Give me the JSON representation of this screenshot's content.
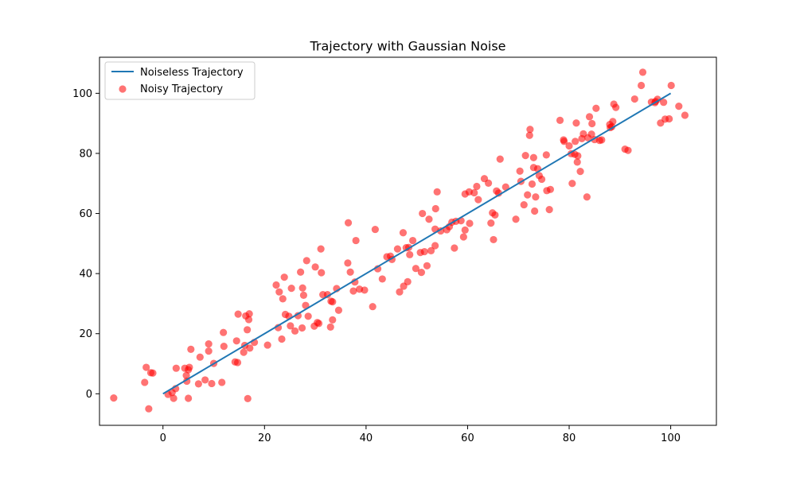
{
  "chart_data": {
    "type": "scatter",
    "title": "Trajectory with Gaussian Noise",
    "xlabel": "",
    "ylabel": "",
    "xlim": [
      -12.5,
      109
    ],
    "ylim": [
      -10.5,
      112
    ],
    "xticks": [
      0,
      20,
      40,
      60,
      80,
      100
    ],
    "yticks": [
      0,
      20,
      40,
      60,
      80,
      100
    ],
    "grid": false,
    "legend_position": "top-left",
    "series": [
      {
        "name": "Noiseless Trajectory",
        "kind": "line",
        "color": "#1f77b4",
        "x": [
          0,
          100
        ],
        "y": [
          0,
          100
        ]
      },
      {
        "name": "Noisy Trajectory",
        "kind": "scatter",
        "color": "#ff0000",
        "alpha": 0.55,
        "points": [
          [
            -9.7,
            -1.4
          ],
          [
            -3.6,
            3.8
          ],
          [
            -3.3,
            8.8
          ],
          [
            -2.8,
            -5.0
          ],
          [
            -2.4,
            7.0
          ],
          [
            -2.0,
            6.9
          ],
          [
            1.0,
            -0.2
          ],
          [
            1.8,
            0.4
          ],
          [
            2.1,
            -1.5
          ],
          [
            2.5,
            1.7
          ],
          [
            2.6,
            8.5
          ],
          [
            4.3,
            8.5
          ],
          [
            4.6,
            6.1
          ],
          [
            4.7,
            4.2
          ],
          [
            5.0,
            -1.5
          ],
          [
            5.0,
            8.0
          ],
          [
            5.2,
            8.8
          ],
          [
            5.5,
            14.8
          ],
          [
            7.0,
            3.3
          ],
          [
            7.3,
            12.2
          ],
          [
            8.3,
            4.6
          ],
          [
            9.0,
            16.6
          ],
          [
            9.0,
            14.2
          ],
          [
            9.6,
            3.4
          ],
          [
            10.0,
            10.1
          ],
          [
            11.6,
            3.8
          ],
          [
            11.9,
            20.4
          ],
          [
            12.0,
            15.8
          ],
          [
            14.2,
            10.6
          ],
          [
            14.5,
            17.6
          ],
          [
            14.7,
            10.4
          ],
          [
            14.8,
            26.5
          ],
          [
            15.9,
            13.8
          ],
          [
            16.1,
            16.1
          ],
          [
            16.3,
            25.9
          ],
          [
            16.6,
            21.3
          ],
          [
            16.7,
            -1.6
          ],
          [
            16.9,
            24.7
          ],
          [
            17.0,
            26.6
          ],
          [
            17.1,
            15.2
          ],
          [
            18.0,
            17.1
          ],
          [
            20.6,
            16.2
          ],
          [
            22.3,
            36.2
          ],
          [
            22.7,
            22.0
          ],
          [
            22.9,
            33.9
          ],
          [
            23.4,
            18.2
          ],
          [
            23.6,
            31.6
          ],
          [
            23.9,
            38.8
          ],
          [
            24.1,
            26.4
          ],
          [
            24.8,
            25.8
          ],
          [
            25.1,
            22.6
          ],
          [
            25.3,
            35.1
          ],
          [
            26.0,
            20.9
          ],
          [
            26.6,
            26.0
          ],
          [
            27.1,
            40.5
          ],
          [
            27.4,
            21.9
          ],
          [
            27.5,
            35.2
          ],
          [
            27.7,
            32.8
          ],
          [
            28.1,
            29.4
          ],
          [
            28.3,
            44.3
          ],
          [
            28.6,
            25.8
          ],
          [
            29.8,
            22.5
          ],
          [
            30.0,
            42.2
          ],
          [
            30.4,
            23.7
          ],
          [
            30.7,
            23.4
          ],
          [
            31.1,
            48.2
          ],
          [
            31.2,
            40.3
          ],
          [
            31.5,
            33.0
          ],
          [
            32.4,
            33.0
          ],
          [
            33.0,
            22.2
          ],
          [
            33.1,
            30.8
          ],
          [
            33.4,
            24.6
          ],
          [
            33.4,
            30.6
          ],
          [
            34.2,
            35.0
          ],
          [
            34.6,
            27.8
          ],
          [
            36.4,
            43.5
          ],
          [
            36.5,
            56.9
          ],
          [
            36.9,
            40.5
          ],
          [
            37.5,
            34.2
          ],
          [
            37.8,
            37.2
          ],
          [
            38.0,
            51.0
          ],
          [
            38.7,
            34.8
          ],
          [
            39.7,
            34.5
          ],
          [
            41.3,
            29.0
          ],
          [
            41.8,
            54.7
          ],
          [
            42.3,
            41.6
          ],
          [
            43.2,
            38.2
          ],
          [
            44.1,
            45.6
          ],
          [
            44.8,
            45.8
          ],
          [
            45.1,
            44.7
          ],
          [
            46.2,
            48.2
          ],
          [
            46.6,
            33.9
          ],
          [
            47.3,
            53.6
          ],
          [
            47.4,
            35.8
          ],
          [
            47.9,
            48.6
          ],
          [
            48.2,
            37.3
          ],
          [
            48.4,
            48.7
          ],
          [
            48.6,
            46.3
          ],
          [
            49.2,
            51.0
          ],
          [
            49.8,
            41.7
          ],
          [
            50.7,
            47.0
          ],
          [
            50.9,
            40.4
          ],
          [
            51.1,
            60.0
          ],
          [
            51.5,
            47.3
          ],
          [
            52.0,
            42.6
          ],
          [
            52.4,
            58.1
          ],
          [
            52.8,
            47.6
          ],
          [
            53.6,
            49.3
          ],
          [
            53.6,
            54.8
          ],
          [
            53.7,
            61.6
          ],
          [
            54.0,
            67.2
          ],
          [
            54.7,
            54.2
          ],
          [
            55.9,
            54.6
          ],
          [
            56.4,
            55.6
          ],
          [
            56.9,
            57.1
          ],
          [
            57.4,
            48.5
          ],
          [
            57.7,
            57.4
          ],
          [
            58.7,
            57.6
          ],
          [
            59.2,
            52.2
          ],
          [
            59.5,
            54.5
          ],
          [
            59.5,
            66.5
          ],
          [
            60.3,
            67.2
          ],
          [
            60.4,
            56.7
          ],
          [
            61.3,
            66.9
          ],
          [
            61.8,
            69.0
          ],
          [
            62.1,
            64.6
          ],
          [
            63.3,
            71.6
          ],
          [
            64.1,
            70.1
          ],
          [
            64.6,
            56.8
          ],
          [
            64.9,
            60.2
          ],
          [
            65.1,
            51.3
          ],
          [
            65.4,
            59.5
          ],
          [
            65.7,
            67.5
          ],
          [
            66.1,
            66.8
          ],
          [
            66.4,
            78.1
          ],
          [
            67.5,
            68.8
          ],
          [
            69.5,
            58.1
          ],
          [
            70.3,
            74.1
          ],
          [
            70.5,
            70.7
          ],
          [
            71.1,
            62.9
          ],
          [
            71.4,
            79.3
          ],
          [
            71.8,
            66.2
          ],
          [
            72.2,
            86.0
          ],
          [
            72.3,
            88.0
          ],
          [
            72.7,
            69.8
          ],
          [
            73.0,
            78.6
          ],
          [
            73.0,
            75.3
          ],
          [
            73.2,
            60.8
          ],
          [
            73.4,
            65.5
          ],
          [
            73.8,
            74.9
          ],
          [
            74.1,
            72.6
          ],
          [
            74.6,
            71.4
          ],
          [
            75.5,
            79.5
          ],
          [
            75.6,
            67.6
          ],
          [
            76.1,
            61.3
          ],
          [
            76.3,
            68.0
          ],
          [
            78.2,
            91.0
          ],
          [
            78.9,
            84.5
          ],
          [
            79.0,
            84.0
          ],
          [
            80.0,
            82.5
          ],
          [
            80.4,
            79.9
          ],
          [
            80.6,
            70.0
          ],
          [
            81.1,
            79.7
          ],
          [
            81.2,
            84.0
          ],
          [
            81.4,
            90.1
          ],
          [
            81.6,
            77.1
          ],
          [
            81.7,
            79.2
          ],
          [
            82.2,
            74.0
          ],
          [
            82.5,
            84.9
          ],
          [
            82.8,
            86.5
          ],
          [
            83.5,
            65.5
          ],
          [
            83.7,
            85.2
          ],
          [
            84.0,
            92.2
          ],
          [
            84.4,
            86.4
          ],
          [
            84.5,
            89.9
          ],
          [
            85.0,
            84.6
          ],
          [
            85.3,
            95.0
          ],
          [
            86.0,
            84.3
          ],
          [
            86.4,
            84.5
          ],
          [
            88.0,
            89.6
          ],
          [
            88.1,
            88.6
          ],
          [
            88.4,
            88.9
          ],
          [
            88.6,
            90.6
          ],
          [
            88.8,
            96.4
          ],
          [
            89.2,
            95.3
          ],
          [
            91.0,
            81.4
          ],
          [
            91.6,
            81.0
          ],
          [
            92.9,
            98.1
          ],
          [
            94.2,
            102.6
          ],
          [
            94.5,
            107.0
          ],
          [
            96.2,
            97.1
          ],
          [
            96.9,
            96.9
          ],
          [
            97.0,
            97.3
          ],
          [
            97.4,
            98.0
          ],
          [
            98.0,
            90.1
          ],
          [
            98.6,
            97.0
          ],
          [
            98.9,
            91.4
          ],
          [
            99.7,
            91.5
          ],
          [
            100.1,
            102.6
          ],
          [
            101.6,
            95.7
          ],
          [
            102.8,
            92.7
          ]
        ]
      }
    ]
  }
}
